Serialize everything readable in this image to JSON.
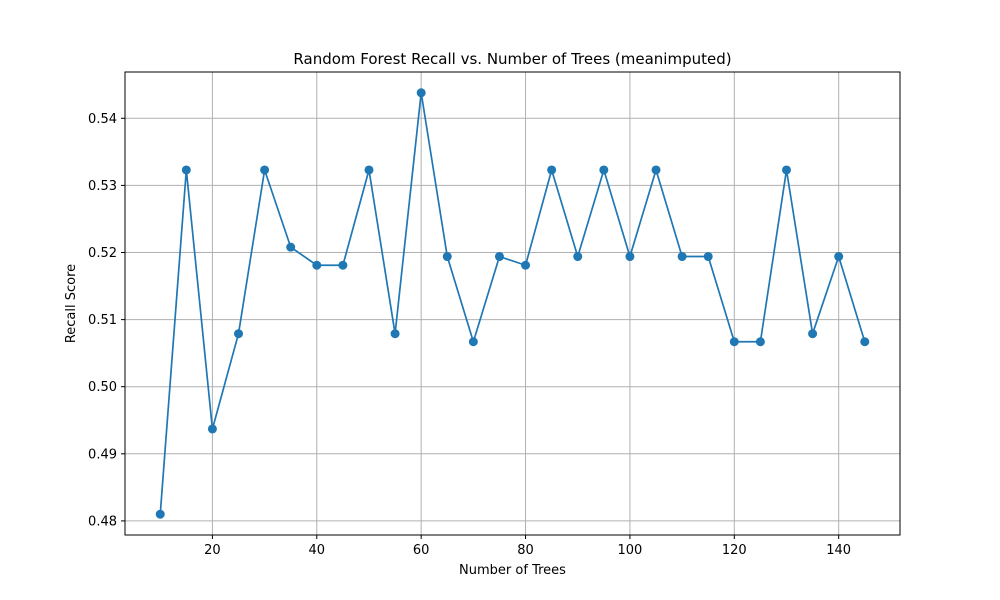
{
  "chart_data": {
    "type": "line",
    "title": "Random Forest Recall vs. Number of Trees (meanimputed)",
    "xlabel": "Number of Trees",
    "ylabel": "Recall Score",
    "xlim": [
      3.25,
      151.75
    ],
    "ylim": [
      0.4779,
      0.5469
    ],
    "xticks": [
      20,
      40,
      60,
      80,
      100,
      120,
      140
    ],
    "yticks": [
      0.48,
      0.49,
      0.5,
      0.51,
      0.52,
      0.53,
      0.54
    ],
    "ytick_labels": [
      "0.48",
      "0.49",
      "0.50",
      "0.51",
      "0.52",
      "0.53",
      "0.54"
    ],
    "grid": true,
    "marker": "circle",
    "series": [
      {
        "color": "#1f77b4",
        "x": [
          10,
          15,
          20,
          25,
          30,
          35,
          40,
          45,
          50,
          55,
          60,
          65,
          70,
          75,
          80,
          85,
          90,
          95,
          100,
          105,
          110,
          115,
          120,
          125,
          130,
          135,
          140,
          145
        ],
        "y": [
          0.481,
          0.5323,
          0.4937,
          0.5079,
          0.5323,
          0.5208,
          0.5181,
          0.5181,
          0.5323,
          0.5079,
          0.5438,
          0.5194,
          0.5067,
          0.5194,
          0.5181,
          0.5323,
          0.5194,
          0.5323,
          0.5194,
          0.5323,
          0.5194,
          0.5194,
          0.5067,
          0.5067,
          0.5323,
          0.5079,
          0.5194,
          0.5067
        ]
      }
    ]
  }
}
